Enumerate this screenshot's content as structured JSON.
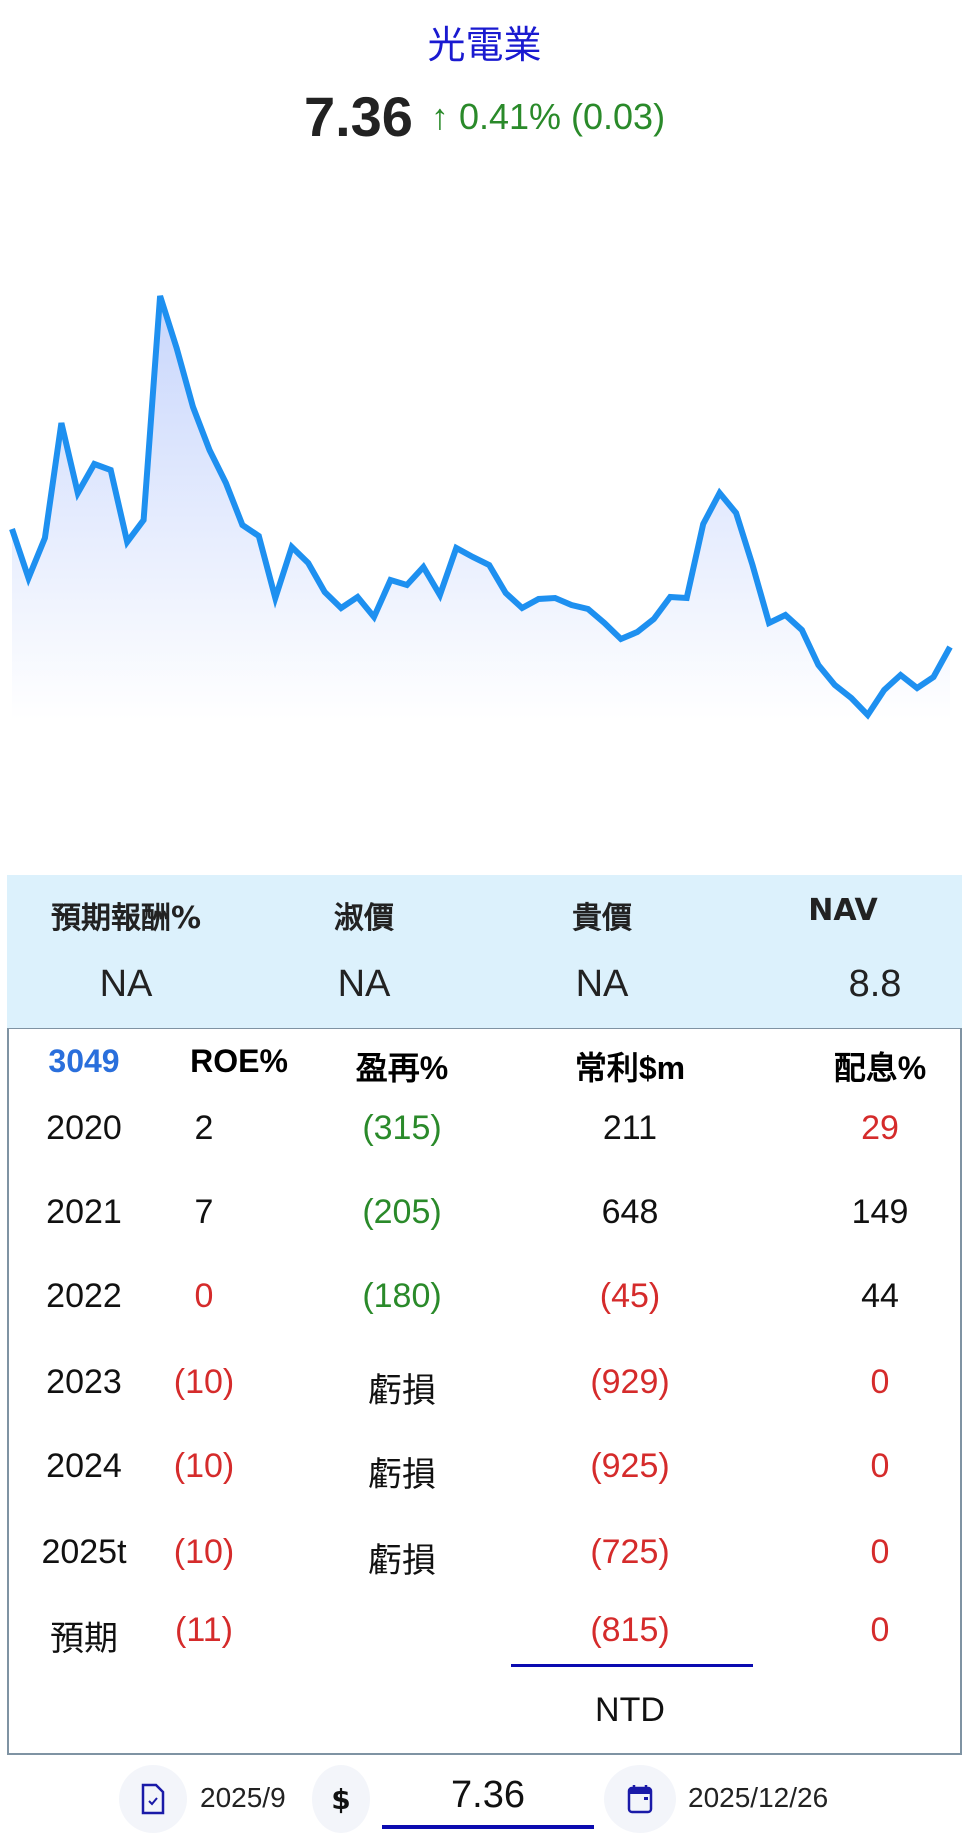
{
  "header": {
    "title": "光電業",
    "price": "7.36",
    "change": "↑ 0.41% (0.03)"
  },
  "chart_data": {
    "type": "area",
    "ylim": [
      5.9,
      15.3
    ],
    "colors": {
      "line": "#1e90f0",
      "fill_top": "#c8d6fc",
      "fill_bottom": "#ffffff"
    },
    "values": [
      9.72,
      8.74,
      9.54,
      11.84,
      10.44,
      11.02,
      10.9,
      9.46,
      9.9,
      14.38,
      13.34,
      12.16,
      11.3,
      10.64,
      9.8,
      9.58,
      8.34,
      9.36,
      9.04,
      8.46,
      8.14,
      8.36,
      7.96,
      8.7,
      8.6,
      8.96,
      8.4,
      9.34,
      9.16,
      9.0,
      8.44,
      8.14,
      8.32,
      8.34,
      8.2,
      8.12,
      7.84,
      7.52,
      7.66,
      7.92,
      8.36,
      8.34,
      9.82,
      10.44,
      10.04,
      9.0,
      7.84,
      8.0,
      7.7,
      7.0,
      6.6,
      6.34,
      6.0,
      6.5,
      6.8,
      6.54,
      6.76,
      7.36
    ]
  },
  "info": {
    "headers": [
      "預期報酬%",
      "淑價",
      "貴價",
      "NAV"
    ],
    "values": [
      "NA",
      "NA",
      "NA",
      "8.8"
    ]
  },
  "table": {
    "headers": [
      "3049",
      "ROE%",
      "盈再%",
      "常利$m",
      "配息%"
    ],
    "rows": [
      {
        "cells": [
          "2020",
          "2",
          "(315)",
          "211",
          "29"
        ],
        "colors": [
          "blk",
          "blk",
          "green",
          "blk",
          "red"
        ]
      },
      {
        "cells": [
          "2021",
          "7",
          "(205)",
          "648",
          "149"
        ],
        "colors": [
          "blk",
          "blk",
          "green",
          "blk",
          "blk"
        ]
      },
      {
        "cells": [
          "2022",
          "0",
          "(180)",
          "(45)",
          "44"
        ],
        "colors": [
          "blk",
          "red",
          "green",
          "red",
          "blk"
        ]
      },
      {
        "cells": [
          "2023",
          "(10)",
          "虧損",
          "(929)",
          "0"
        ],
        "colors": [
          "blk",
          "red",
          "blk",
          "red",
          "red"
        ]
      },
      {
        "cells": [
          "2024",
          "(10)",
          "虧損",
          "(925)",
          "0"
        ],
        "colors": [
          "blk",
          "red",
          "blk",
          "red",
          "red"
        ]
      },
      {
        "cells": [
          "2025t",
          "(10)",
          "虧損",
          "(725)",
          "0"
        ],
        "colors": [
          "blk",
          "red",
          "blk",
          "red",
          "red"
        ]
      },
      {
        "cells": [
          "預期",
          "(11)",
          "",
          "(815)",
          "0"
        ],
        "colors": [
          "blk",
          "red",
          "blk",
          "red",
          "red"
        ]
      }
    ],
    "currency": "NTD"
  },
  "bottom": {
    "report_date": "2025/9",
    "currency_symbol": "$",
    "price_value": "7.36",
    "date": "2025/12/26"
  }
}
